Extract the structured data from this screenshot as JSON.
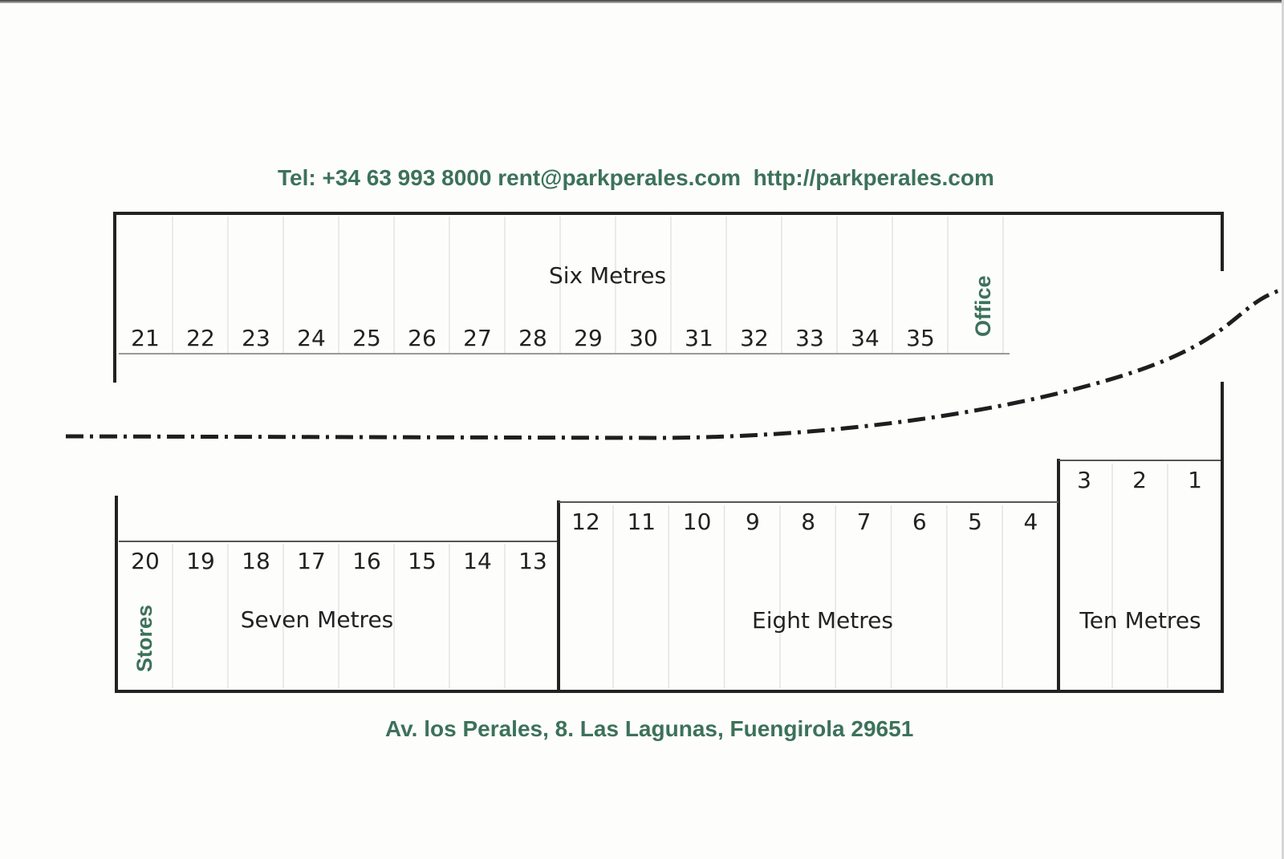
{
  "contact": "Tel: +34 63 993 8000 rent@parkperales.com  http://parkperales.com",
  "address": "Av. los Perales, 8. Las Lagunas, Fuengirola 29651",
  "colors": {
    "green_text": "#3c7259",
    "line": "#222222"
  },
  "top_row": {
    "zone": "Six Metres",
    "units": [
      "21",
      "22",
      "23",
      "24",
      "25",
      "26",
      "27",
      "28",
      "29",
      "30",
      "31",
      "32",
      "33",
      "34",
      "35"
    ],
    "office": "Office"
  },
  "bottom_left": {
    "zone": "Seven Metres",
    "units": [
      "20",
      "19",
      "18",
      "17",
      "16",
      "15",
      "14",
      "13"
    ],
    "stores": "Stores"
  },
  "bottom_middle": {
    "zone": "Eight Metres",
    "units": [
      "12",
      "11",
      "10",
      "9",
      "8",
      "7",
      "6",
      "5",
      "4"
    ]
  },
  "bottom_right": {
    "zone": "Ten Metres",
    "units": [
      "3",
      "2",
      "1"
    ]
  }
}
